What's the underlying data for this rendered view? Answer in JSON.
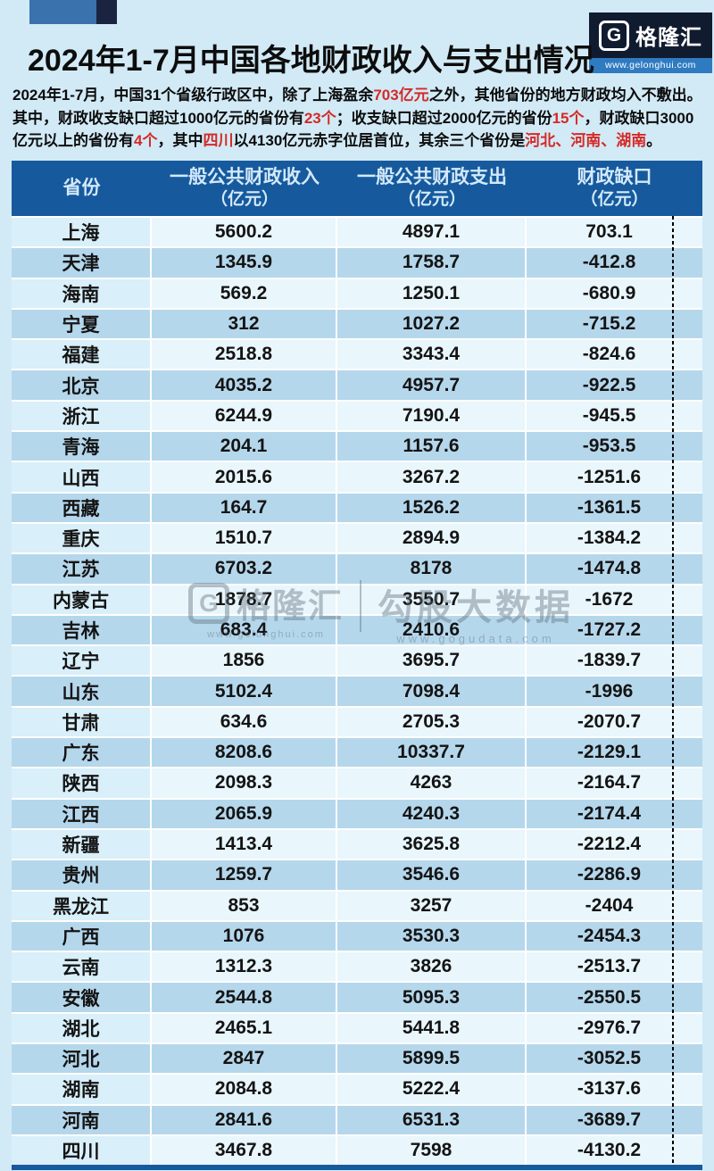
{
  "header": {
    "title": "2024年1-7月中国各地财政收入与支出情况"
  },
  "logo": {
    "icon_letter": "G",
    "name": "格隆汇",
    "url": "www.gelonghui.com"
  },
  "description": {
    "lines": [
      [
        {
          "t": "2024年1-7月，中国31个省级行政区中，除了上海盈余"
        },
        {
          "t": "703亿元",
          "red": true
        },
        {
          "t": "之外，其他省份的地方财政均入不敷出。"
        }
      ],
      [
        {
          "t": "其中，财政收支缺口超过1000亿元的省份有"
        },
        {
          "t": "23个",
          "red": true
        },
        {
          "t": "；收支缺口超过2000亿元的省份"
        },
        {
          "t": "15个",
          "red": true
        },
        {
          "t": "，财政缺口3000"
        }
      ],
      [
        {
          "t": "亿元以上的省份有"
        },
        {
          "t": "4个",
          "red": true
        },
        {
          "t": "，其中"
        },
        {
          "t": "四川",
          "red": true
        },
        {
          "t": "以4130亿元赤字位居首位，其余三个省份是"
        },
        {
          "t": "河北、河南、湖南",
          "red": true
        },
        {
          "t": "。"
        }
      ]
    ]
  },
  "table_header": {
    "cols": [
      {
        "title": "省份",
        "unit": ""
      },
      {
        "title": "一般公共财政收入",
        "unit": "（亿元）"
      },
      {
        "title": "一般公共财政支出",
        "unit": "（亿元）"
      },
      {
        "title": "财政缺口",
        "unit": "（亿元）"
      }
    ]
  },
  "watermark": {
    "g_letter": "G",
    "brand": "格隆汇",
    "brand_url": "www.gelonghui.com",
    "partner": "勾股大数据",
    "partner_url": "www.gogudata.com"
  },
  "colors": {
    "page_bg": "#d2eaf6",
    "header_blue": "#165a9d",
    "row_light": "#e9f6fc",
    "row_dark": "#b5d7ec",
    "negative_bar_green": "#6cbd42",
    "positive_bar_red": "#d3282b",
    "highlight_red_text": "#d42a26"
  },
  "chart_data": {
    "type": "table",
    "title": "2024年1-7月中国各地财政收入与支出情况",
    "columns": [
      "省份",
      "一般公共财政收入（亿元）",
      "一般公共财政支出（亿元）",
      "财政缺口（亿元）"
    ],
    "bar_column": "财政缺口（亿元）",
    "bar_axis": {
      "positive_color": "red",
      "negative_color": "green",
      "zero_line": "dotted"
    },
    "rows": [
      {
        "province": "上海",
        "revenue": "5600.2",
        "expenditure": "4897.1",
        "gap": "703.1"
      },
      {
        "province": "天津",
        "revenue": "1345.9",
        "expenditure": "1758.7",
        "gap": "-412.8"
      },
      {
        "province": "海南",
        "revenue": "569.2",
        "expenditure": "1250.1",
        "gap": "-680.9"
      },
      {
        "province": "宁夏",
        "revenue": "312",
        "expenditure": "1027.2",
        "gap": "-715.2"
      },
      {
        "province": "福建",
        "revenue": "2518.8",
        "expenditure": "3343.4",
        "gap": "-824.6"
      },
      {
        "province": "北京",
        "revenue": "4035.2",
        "expenditure": "4957.7",
        "gap": "-922.5"
      },
      {
        "province": "浙江",
        "revenue": "6244.9",
        "expenditure": "7190.4",
        "gap": "-945.5"
      },
      {
        "province": "青海",
        "revenue": "204.1",
        "expenditure": "1157.6",
        "gap": "-953.5"
      },
      {
        "province": "山西",
        "revenue": "2015.6",
        "expenditure": "3267.2",
        "gap": "-1251.6"
      },
      {
        "province": "西藏",
        "revenue": "164.7",
        "expenditure": "1526.2",
        "gap": "-1361.5"
      },
      {
        "province": "重庆",
        "revenue": "1510.7",
        "expenditure": "2894.9",
        "gap": "-1384.2"
      },
      {
        "province": "江苏",
        "revenue": "6703.2",
        "expenditure": "8178",
        "gap": "-1474.8"
      },
      {
        "province": "内蒙古",
        "revenue": "1878.7",
        "expenditure": "3550.7",
        "gap": "-1672"
      },
      {
        "province": "吉林",
        "revenue": "683.4",
        "expenditure": "2410.6",
        "gap": "-1727.2"
      },
      {
        "province": "辽宁",
        "revenue": "1856",
        "expenditure": "3695.7",
        "gap": "-1839.7"
      },
      {
        "province": "山东",
        "revenue": "5102.4",
        "expenditure": "7098.4",
        "gap": "-1996"
      },
      {
        "province": "甘肃",
        "revenue": "634.6",
        "expenditure": "2705.3",
        "gap": "-2070.7"
      },
      {
        "province": "广东",
        "revenue": "8208.6",
        "expenditure": "10337.7",
        "gap": "-2129.1"
      },
      {
        "province": "陕西",
        "revenue": "2098.3",
        "expenditure": "4263",
        "gap": "-2164.7"
      },
      {
        "province": "江西",
        "revenue": "2065.9",
        "expenditure": "4240.3",
        "gap": "-2174.4"
      },
      {
        "province": "新疆",
        "revenue": "1413.4",
        "expenditure": "3625.8",
        "gap": "-2212.4"
      },
      {
        "province": "贵州",
        "revenue": "1259.7",
        "expenditure": "3546.6",
        "gap": "-2286.9"
      },
      {
        "province": "黑龙江",
        "revenue": "853",
        "expenditure": "3257",
        "gap": "-2404"
      },
      {
        "province": "广西",
        "revenue": "1076",
        "expenditure": "3530.3",
        "gap": "-2454.3"
      },
      {
        "province": "云南",
        "revenue": "1312.3",
        "expenditure": "3826",
        "gap": "-2513.7"
      },
      {
        "province": "安徽",
        "revenue": "2544.8",
        "expenditure": "5095.3",
        "gap": "-2550.5"
      },
      {
        "province": "湖北",
        "revenue": "2465.1",
        "expenditure": "5441.8",
        "gap": "-2976.7"
      },
      {
        "province": "河北",
        "revenue": "2847",
        "expenditure": "5899.5",
        "gap": "-3052.5"
      },
      {
        "province": "湖南",
        "revenue": "2084.8",
        "expenditure": "5222.4",
        "gap": "-3137.6"
      },
      {
        "province": "河南",
        "revenue": "2841.6",
        "expenditure": "6531.3",
        "gap": "-3689.7"
      },
      {
        "province": "四川",
        "revenue": "3467.8",
        "expenditure": "7598",
        "gap": "-4130.2"
      }
    ]
  }
}
